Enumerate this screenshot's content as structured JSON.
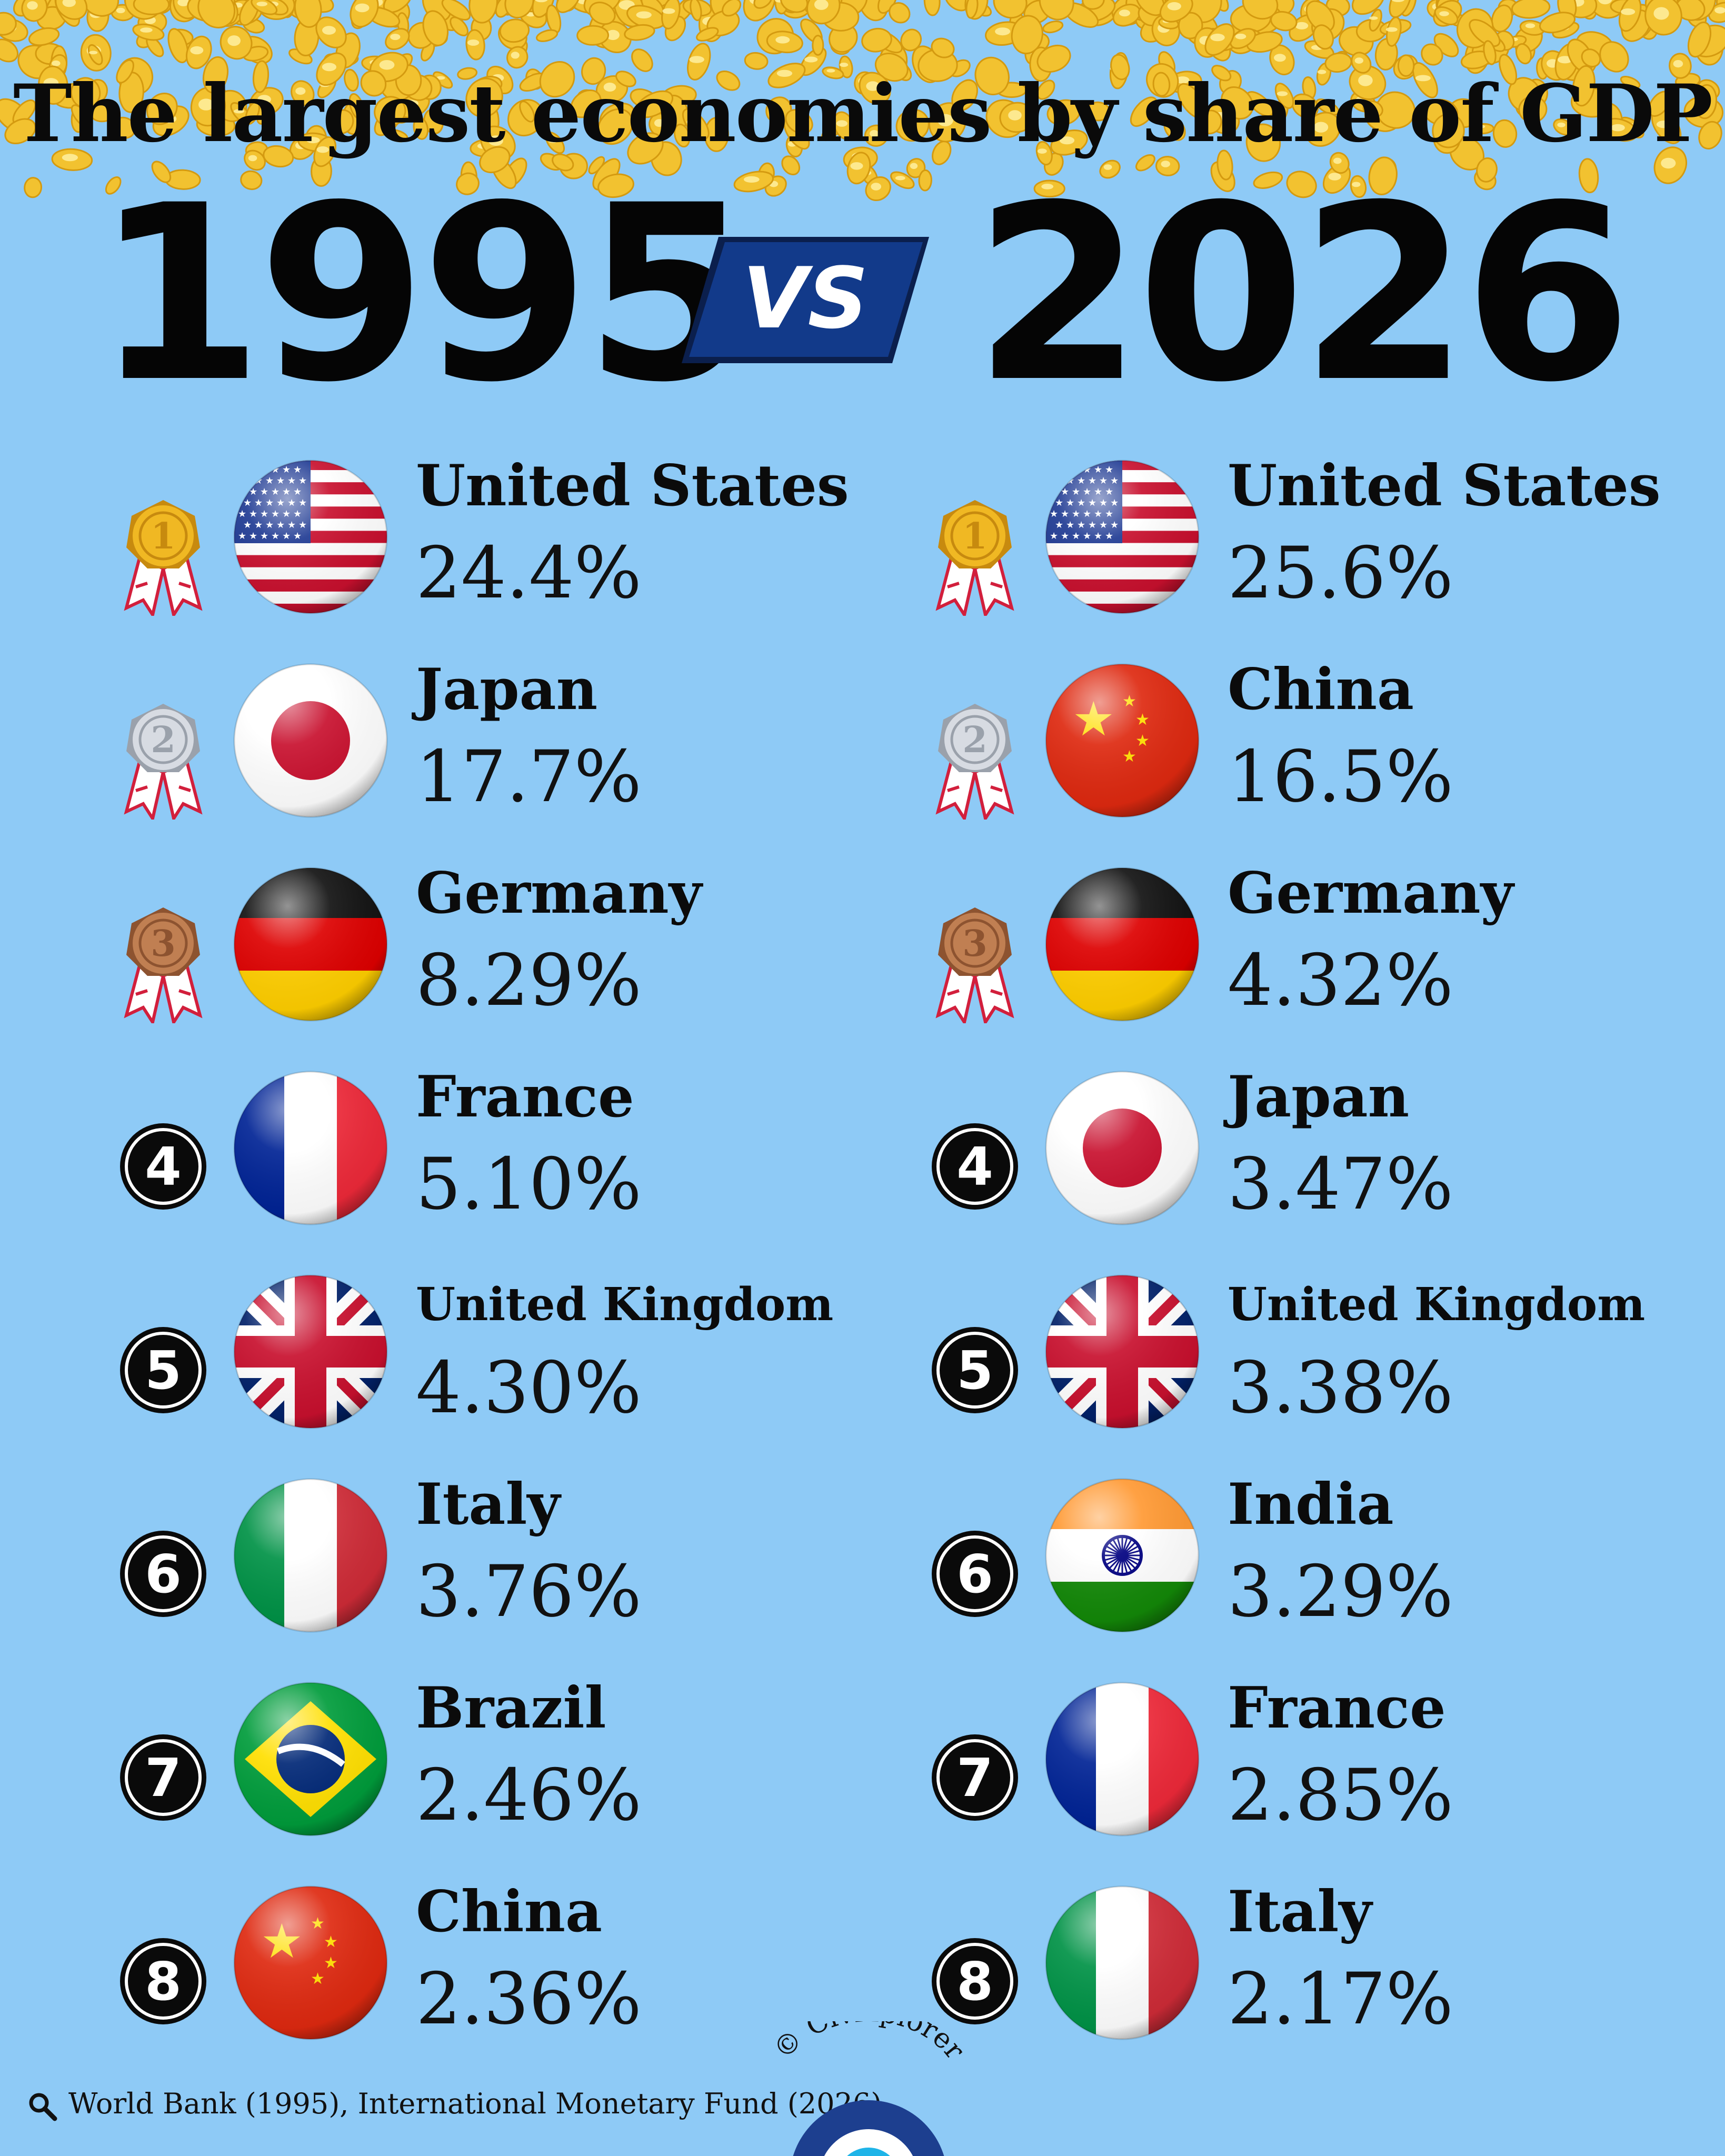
{
  "header": {
    "title": "The largest economies by share of GDP",
    "year_left": "1995",
    "vs": "VS",
    "year_right": "2026"
  },
  "left_ranking": [
    {
      "rank": "1",
      "country": "United States",
      "share": "24.4%",
      "flag": "us-flag"
    },
    {
      "rank": "2",
      "country": "Japan",
      "share": "17.7%",
      "flag": "japan-flag"
    },
    {
      "rank": "3",
      "country": "Germany",
      "share": "8.29%",
      "flag": "germany-flag"
    },
    {
      "rank": "4",
      "country": "France",
      "share": "5.10%",
      "flag": "france-flag"
    },
    {
      "rank": "5",
      "country": "United Kingdom",
      "share": "4.30%",
      "flag": "uk-flag"
    },
    {
      "rank": "6",
      "country": "Italy",
      "share": "3.76%",
      "flag": "italy-flag"
    },
    {
      "rank": "7",
      "country": "Brazil",
      "share": "2.46%",
      "flag": "brazil-flag"
    },
    {
      "rank": "8",
      "country": "China",
      "share": "2.36%",
      "flag": "china-flag"
    }
  ],
  "right_ranking": [
    {
      "rank": "1",
      "country": "United States",
      "share": "25.6%",
      "flag": "us-flag"
    },
    {
      "rank": "2",
      "country": "China",
      "share": "16.5%",
      "flag": "china-flag"
    },
    {
      "rank": "3",
      "country": "Germany",
      "share": "4.32%",
      "flag": "germany-flag"
    },
    {
      "rank": "4",
      "country": "Japan",
      "share": "3.47%",
      "flag": "japan-flag"
    },
    {
      "rank": "5",
      "country": "United Kingdom",
      "share": "3.38%",
      "flag": "uk-flag"
    },
    {
      "rank": "6",
      "country": "India",
      "share": "3.29%",
      "flag": "india-flag"
    },
    {
      "rank": "7",
      "country": "France",
      "share": "2.85%",
      "flag": "france-flag"
    },
    {
      "rank": "8",
      "country": "Italy",
      "share": "2.17%",
      "flag": "italy-flag"
    }
  ],
  "footer": {
    "source": "World Bank (1995), International Monetary Fund (2026)",
    "source_icon": "magnifier-icon",
    "brand": "© Civixplorer"
  },
  "colors": {
    "background": "#8ecaf6",
    "coins": "#f5c518",
    "vs_box": "#0f2f7a",
    "gold": "#e8b21c",
    "silver": "#c9ced6",
    "bronze": "#b7774d"
  }
}
